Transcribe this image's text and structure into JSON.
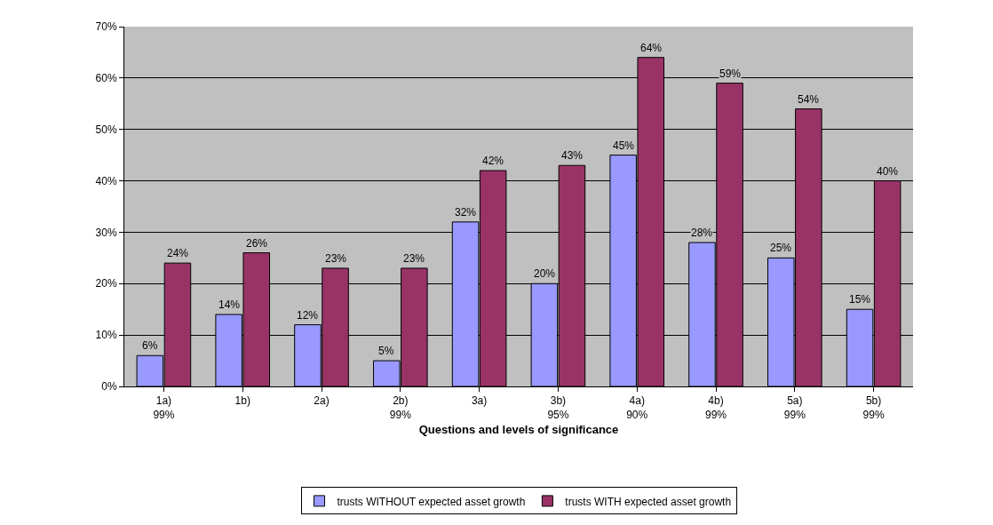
{
  "chart_data": {
    "type": "bar",
    "xlabel": "Questions and levels of significance",
    "categories": [
      "1a)\n99%",
      "1b)",
      "2a)",
      "2b)\n99%",
      "3a)",
      "3b)\n95%",
      "4a)\n90%",
      "4b)\n99%",
      "5a)\n99%",
      "5b)\n99%"
    ],
    "series": [
      {
        "name": "trusts WITHOUT expected asset growth",
        "color": "#9999ff",
        "values": [
          6,
          14,
          12,
          5,
          32,
          20,
          45,
          28,
          25,
          15
        ],
        "value_labels": [
          "6%",
          "14%",
          "12%",
          "5%",
          "32%",
          "20%",
          "45%",
          "28%",
          "25%",
          "15%"
        ]
      },
      {
        "name": "trusts WITH expected asset growth",
        "color": "#993366",
        "values": [
          24,
          26,
          23,
          23,
          42,
          43,
          64,
          59,
          54,
          40
        ],
        "value_labels": [
          "24%",
          "26%",
          "23%",
          "23%",
          "42%",
          "43%",
          "64%",
          "59%",
          "54%",
          "40%"
        ]
      }
    ],
    "ylim": [
      0,
      70
    ],
    "yticks": [
      {
        "value": 0,
        "label": "0%"
      },
      {
        "value": 10,
        "label": "10%"
      },
      {
        "value": 20,
        "label": "20%"
      },
      {
        "value": 30,
        "label": "30%"
      },
      {
        "value": 40,
        "label": "40%"
      },
      {
        "value": 50,
        "label": "50%"
      },
      {
        "value": 60,
        "label": "60%"
      },
      {
        "value": 70,
        "label": "70%"
      }
    ],
    "grid": "y",
    "legend": "bottom",
    "data_labels": true
  }
}
